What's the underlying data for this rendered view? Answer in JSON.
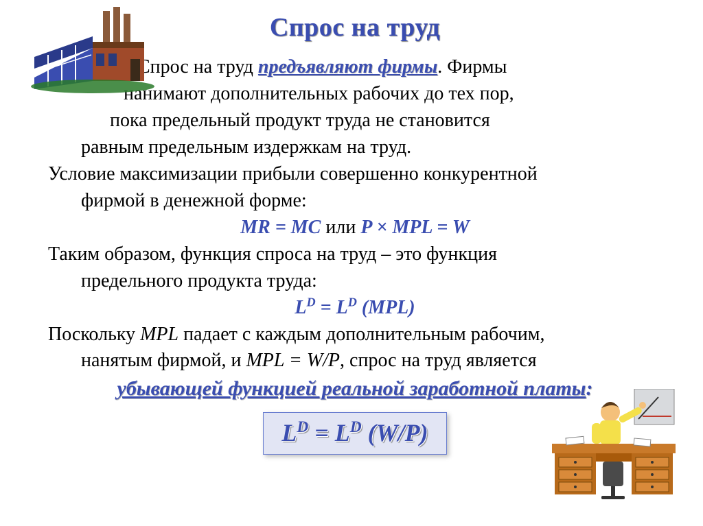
{
  "title": "Спрос на труд",
  "p1_a": "Спрос  на   труд ",
  "p1_em": "предъявляют   фирмы",
  "p1_b": ".  Фирмы",
  "p1_c": "нанимают  дополнительных  рабочих  до тех  пор,",
  "p1_d": "пока   предельный   продукт   труда   не   становится",
  "p1_e": "равным предельным издержкам  на труд.",
  "p2_a": "Условие  максимизации  прибыли  совершенно  конкурентной",
  "p2_b": "фирмой в денежной форме:",
  "f1_a": "MR = MC",
  "f1_mid": "  или   ",
  "f1_b": "P × MPL = W",
  "p3_a": "Таким   образом,   функция   спроса   на   труд   –   это   функция",
  "p3_b": "предельного продукта труда:",
  "f2": "L<sup>D</sup> = L<sup>D</sup> (MPL)",
  "p4_a": "Поскольку  ",
  "p4_mpl": "MPL",
  "p4_b": "  падает  с  каждым  дополнительным  рабочим,",
  "p4_c": "нанятым фирмой, и ",
  "p4_eq": "MPL = W/P",
  "p4_d": ", спрос на труд является",
  "conclusion": "убывающей функцией реальной заработной платы",
  "conclusion_colon": ":",
  "f3": "L<sup>D</sup> = L<sup>D</sup> (W/P)",
  "colors": {
    "title": "#3a4db0",
    "formula": "#3a4db0",
    "box_bg": "#e2e5f4",
    "box_border": "#6a7ed0",
    "text": "#000000"
  }
}
